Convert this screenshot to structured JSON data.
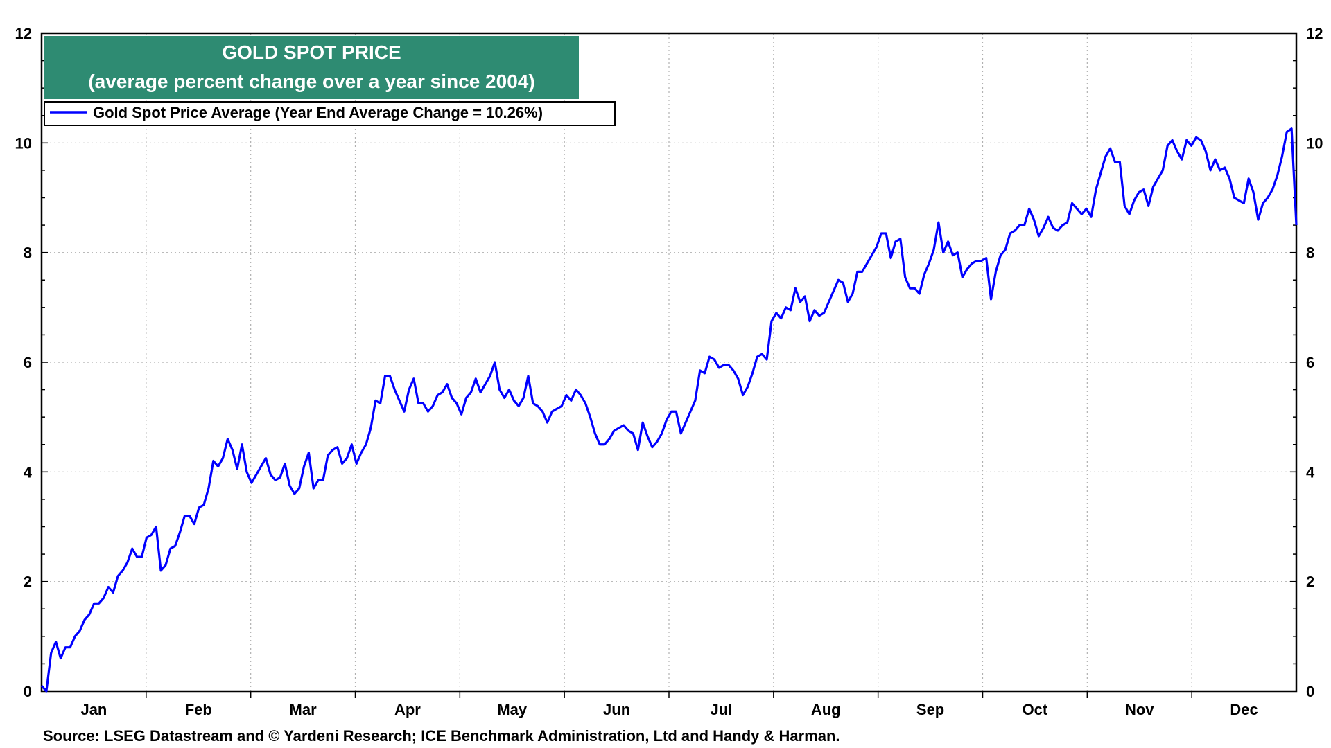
{
  "chart_data": {
    "type": "line",
    "title": "GOLD SPOT PRICE",
    "subtitle": "(average percent change over a year since 2004)",
    "source": "Source: LSEG Datastream and © Yardeni Research; ICE Benchmark Administration, Ltd and Handy & Harman.",
    "ylim": [
      0,
      12
    ],
    "yticks": [
      0,
      2,
      4,
      6,
      8,
      10,
      12
    ],
    "ytick_labels": [
      "0",
      "2",
      "4",
      "6",
      "8",
      "10",
      "12"
    ],
    "grid": true,
    "legend_placement": "top-left",
    "months": [
      "Jan",
      "Feb",
      "Mar",
      "Apr",
      "May",
      "Jun",
      "Jul",
      "Aug",
      "Sep",
      "Oct",
      "Nov",
      "Dec"
    ],
    "colors": {
      "series": "#0000ff",
      "title_bg": "#2e8b72",
      "grid": "#b0b0b0"
    },
    "series": [
      {
        "name": "Gold Spot Price Average (Year End Average Change = 10.26%)",
        "values": [
          0.1,
          0.0,
          0.7,
          0.9,
          0.6,
          0.8,
          0.8,
          1.0,
          1.1,
          1.3,
          1.4,
          1.6,
          1.6,
          1.7,
          1.9,
          1.8,
          2.1,
          2.2,
          2.35,
          2.6,
          2.45,
          2.45,
          2.8,
          2.85,
          3.0,
          2.2,
          2.3,
          2.6,
          2.65,
          2.9,
          3.2,
          3.2,
          3.05,
          3.35,
          3.4,
          3.7,
          4.2,
          4.1,
          4.25,
          4.6,
          4.4,
          4.05,
          4.5,
          4.0,
          3.8,
          3.95,
          4.1,
          4.25,
          3.95,
          3.85,
          3.9,
          4.15,
          3.75,
          3.6,
          3.7,
          4.1,
          4.35,
          3.7,
          3.85,
          3.85,
          4.3,
          4.4,
          4.45,
          4.15,
          4.25,
          4.5,
          4.15,
          4.35,
          4.5,
          4.8,
          5.3,
          5.25,
          5.75,
          5.75,
          5.5,
          5.3,
          5.1,
          5.5,
          5.7,
          5.25,
          5.25,
          5.1,
          5.2,
          5.4,
          5.45,
          5.6,
          5.35,
          5.25,
          5.05,
          5.35,
          5.45,
          5.7,
          5.45,
          5.6,
          5.75,
          6.0,
          5.5,
          5.35,
          5.5,
          5.3,
          5.2,
          5.35,
          5.75,
          5.25,
          5.2,
          5.1,
          4.9,
          5.1,
          5.15,
          5.2,
          5.4,
          5.3,
          5.5,
          5.4,
          5.25,
          5.0,
          4.7,
          4.5,
          4.5,
          4.6,
          4.75,
          4.8,
          4.85,
          4.75,
          4.7,
          4.4,
          4.9,
          4.65,
          4.45,
          4.55,
          4.7,
          4.95,
          5.1,
          5.1,
          4.7,
          4.9,
          5.1,
          5.3,
          5.85,
          5.8,
          6.1,
          6.05,
          5.9,
          5.95,
          5.95,
          5.85,
          5.7,
          5.4,
          5.55,
          5.8,
          6.1,
          6.15,
          6.05,
          6.75,
          6.9,
          6.8,
          7.0,
          6.95,
          7.35,
          7.1,
          7.2,
          6.75,
          6.95,
          6.85,
          6.9,
          7.1,
          7.3,
          7.5,
          7.45,
          7.1,
          7.25,
          7.65,
          7.65,
          7.8,
          7.95,
          8.1,
          8.35,
          8.35,
          7.9,
          8.2,
          8.25,
          7.55,
          7.35,
          7.35,
          7.25,
          7.6,
          7.8,
          8.05,
          8.55,
          8.0,
          8.2,
          7.95,
          8.0,
          7.55,
          7.7,
          7.8,
          7.85,
          7.85,
          7.9,
          7.15,
          7.65,
          7.95,
          8.05,
          8.35,
          8.4,
          8.5,
          8.5,
          8.8,
          8.6,
          8.3,
          8.45,
          8.65,
          8.45,
          8.4,
          8.5,
          8.55,
          8.9,
          8.8,
          8.7,
          8.8,
          8.65,
          9.15,
          9.45,
          9.75,
          9.9,
          9.65,
          9.65,
          8.85,
          8.7,
          8.95,
          9.1,
          9.15,
          8.85,
          9.2,
          9.35,
          9.5,
          9.95,
          10.05,
          9.85,
          9.7,
          10.05,
          9.95,
          10.1,
          10.05,
          9.85,
          9.5,
          9.7,
          9.5,
          9.55,
          9.35,
          9.0,
          8.95,
          8.9,
          9.35,
          9.1,
          8.6,
          8.9,
          9.0,
          9.15,
          9.4,
          9.75,
          10.2,
          10.26,
          8.5
        ]
      }
    ]
  }
}
